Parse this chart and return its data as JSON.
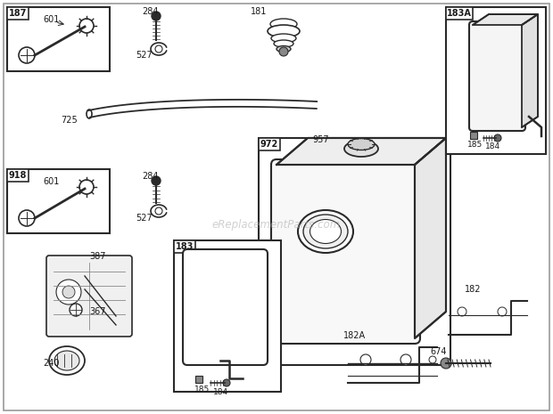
{
  "bg_color": "#ffffff",
  "watermark": "eReplacementParts.com",
  "border_color": "#aaaaaa",
  "line_color": "#2a2a2a",
  "label_color": "#1a1a1a"
}
